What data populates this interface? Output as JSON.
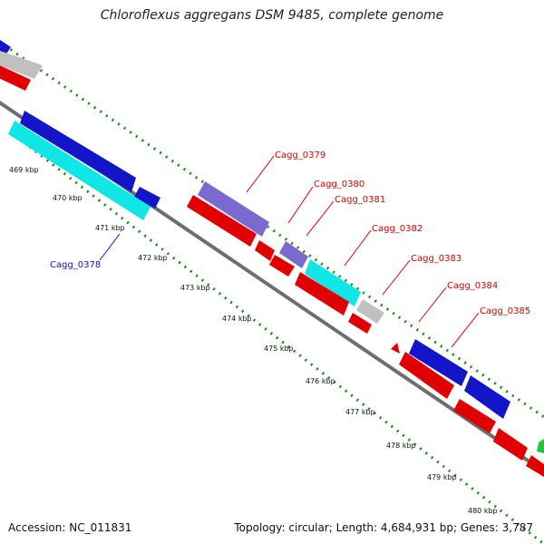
{
  "title": "Chloroflexus aggregans DSM 9485, complete genome",
  "accession": "Accession: NC_011831",
  "summary": "Topology: circular; Length: 4,684,931 bp; Genes: 3,787",
  "scale_labels": [
    "469 kbp",
    "470 kbp",
    "471 kbp",
    "472 kbp",
    "473 kbp",
    "474 kbp",
    "475 kbp",
    "476 kbp",
    "477 kbp",
    "478 kbp",
    "479 kbp",
    "480 kbp"
  ],
  "gene_labels": [
    "Cagg_0378",
    "Cagg_0379",
    "Cagg_0380",
    "Cagg_0381",
    "Cagg_0382",
    "Cagg_0383",
    "Cagg_0384",
    "Cagg_0385"
  ],
  "colors": {
    "backbone": "#6e6e6e",
    "tick": "#1a8a1a",
    "red": "#e00000",
    "blue": "#1414c8",
    "cyan": "#10e6e6",
    "purple": "#7a6ad0",
    "gray": "#c0c0c0",
    "green": "#22c43a",
    "label_red": "#d40000",
    "label_blue": "#1010c8"
  }
}
